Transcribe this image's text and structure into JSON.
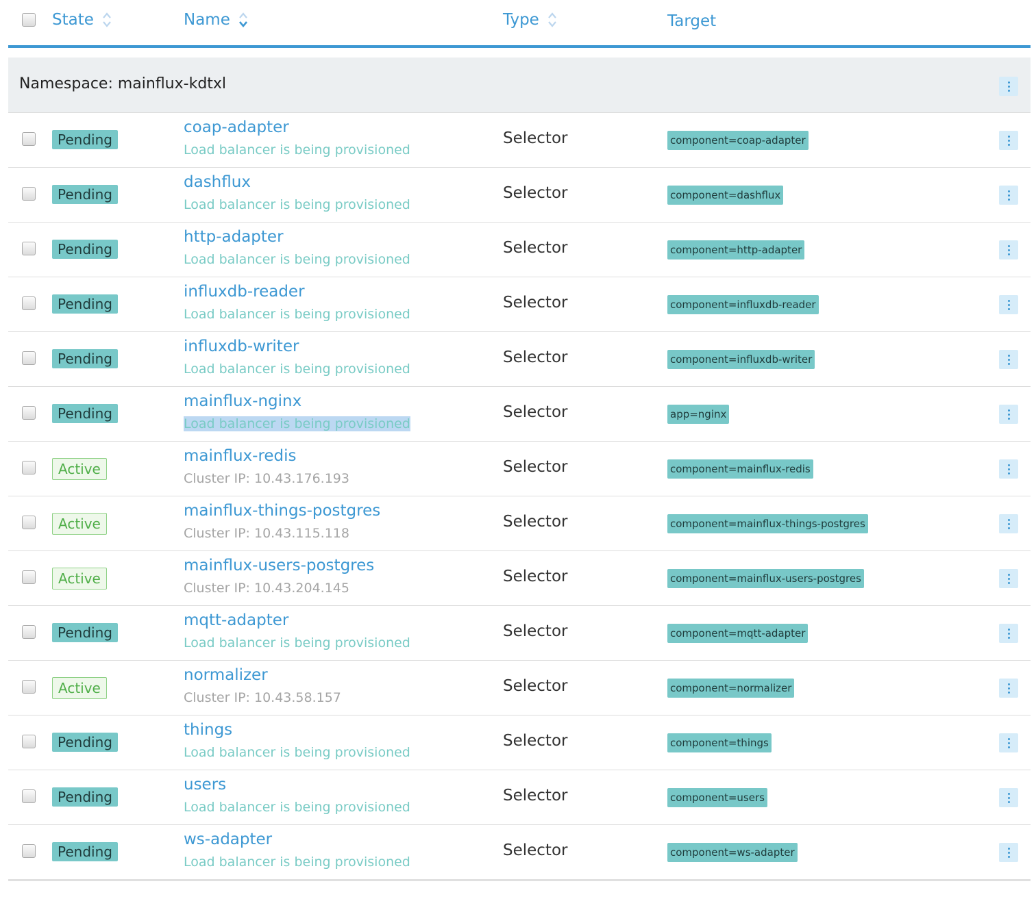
{
  "header": {
    "state": "State",
    "name": "Name",
    "type": "Type",
    "target": "Target"
  },
  "group": {
    "title": "Namespace: mainflux-kdtxl"
  },
  "rows": [
    {
      "state": "Pending",
      "name": "coap-adapter",
      "sub": "Load balancer is being provisioned",
      "type": "Selector",
      "target": "component=coap-adapter"
    },
    {
      "state": "Pending",
      "name": "dashflux",
      "sub": "Load balancer is being provisioned",
      "type": "Selector",
      "target": "component=dashflux"
    },
    {
      "state": "Pending",
      "name": "http-adapter",
      "sub": "Load balancer is being provisioned",
      "type": "Selector",
      "target": "component=http-adapter"
    },
    {
      "state": "Pending",
      "name": "influxdb-reader",
      "sub": "Load balancer is being provisioned",
      "type": "Selector",
      "target": "component=influxdb-reader"
    },
    {
      "state": "Pending",
      "name": "influxdb-writer",
      "sub": "Load balancer is being provisioned",
      "type": "Selector",
      "target": "component=influxdb-writer"
    },
    {
      "state": "Pending",
      "name": "mainflux-nginx",
      "sub": "Load balancer is being provisioned",
      "type": "Selector",
      "target": "app=nginx"
    },
    {
      "state": "Active",
      "name": "mainflux-redis",
      "sub": "Cluster IP: 10.43.176.193",
      "type": "Selector",
      "target": "component=mainflux-redis"
    },
    {
      "state": "Active",
      "name": "mainflux-things-postgres",
      "sub": "Cluster IP: 10.43.115.118",
      "type": "Selector",
      "target": "component=mainflux-things-postgres"
    },
    {
      "state": "Active",
      "name": "mainflux-users-postgres",
      "sub": "Cluster IP: 10.43.204.145",
      "type": "Selector",
      "target": "component=mainflux-users-postgres"
    },
    {
      "state": "Pending",
      "name": "mqtt-adapter",
      "sub": "Load balancer is being provisioned",
      "type": "Selector",
      "target": "component=mqtt-adapter"
    },
    {
      "state": "Active",
      "name": "normalizer",
      "sub": "Cluster IP: 10.43.58.157",
      "type": "Selector",
      "target": "component=normalizer"
    },
    {
      "state": "Pending",
      "name": "things",
      "sub": "Load balancer is being provisioned",
      "type": "Selector",
      "target": "component=things"
    },
    {
      "state": "Pending",
      "name": "users",
      "sub": "Load balancer is being provisioned",
      "type": "Selector",
      "target": "component=users"
    },
    {
      "state": "Pending",
      "name": "ws-adapter",
      "sub": "Load balancer is being provisioned",
      "type": "Selector",
      "target": "component=ws-adapter"
    }
  ],
  "colors": {
    "accent": "#3d98d3",
    "pending_badge": "#78c8c8",
    "active_badge_text": "#4fae48",
    "highlight_selection": "#bcd8f2"
  },
  "icons": {
    "sort": "sort-icon",
    "row_actions": "kebab-menu-icon",
    "checkbox": "checkbox"
  }
}
